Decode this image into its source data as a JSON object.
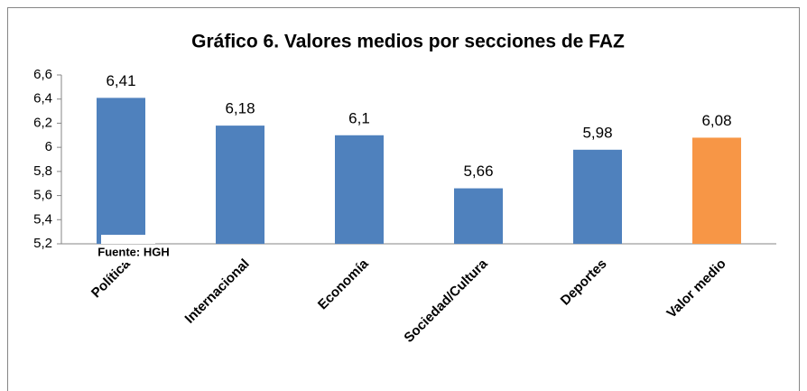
{
  "chart_data": {
    "type": "bar",
    "title": "Gráfico 6. Valores medios por secciones de FAZ",
    "categories": [
      "Política",
      "Internacional",
      "Economía",
      "Sociedad/Cultura",
      "Deportes",
      "Valor medio"
    ],
    "values": [
      6.41,
      6.18,
      6.1,
      5.66,
      5.98,
      6.08
    ],
    "value_labels": [
      "6,41",
      "6,18",
      "6,1",
      "5,66",
      "5,98",
      "6,08"
    ],
    "colors": [
      "#4f81bd",
      "#4f81bd",
      "#4f81bd",
      "#4f81bd",
      "#4f81bd",
      "#f79646"
    ],
    "ylim": [
      5.2,
      6.6
    ],
    "yticks": [
      {
        "value": 5.2,
        "label": "5,2"
      },
      {
        "value": 5.4,
        "label": "5,4"
      },
      {
        "value": 5.6,
        "label": "5,6"
      },
      {
        "value": 5.8,
        "label": "5,8"
      },
      6,
      {
        "value": 6.2,
        "label": "6,2"
      },
      {
        "value": 6.4,
        "label": "6,4"
      },
      {
        "value": 6.6,
        "label": "6,6"
      }
    ],
    "grid": false,
    "annotation": "Fuente: HGH"
  }
}
